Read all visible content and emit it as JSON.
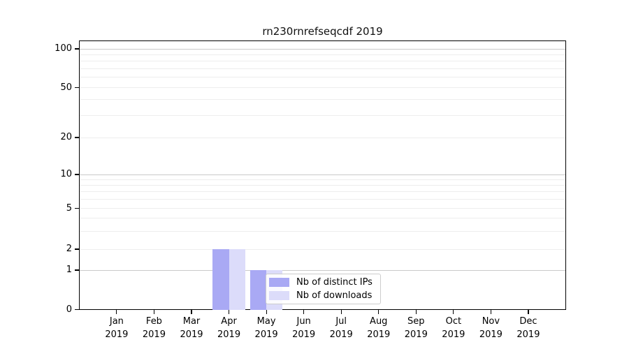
{
  "chart_data": {
    "type": "bar",
    "title": "rn230rnrefseqcdf 2019",
    "xlabel": "",
    "ylabel": "",
    "year_label": "2019",
    "categories": [
      "Jan",
      "Feb",
      "Mar",
      "Apr",
      "May",
      "Jun",
      "Jul",
      "Aug",
      "Sep",
      "Oct",
      "Nov",
      "Dec"
    ],
    "series": [
      {
        "name": "Nb of distinct IPs",
        "color": "#a9a9f4",
        "values": [
          0,
          0,
          0,
          2,
          1,
          0,
          0,
          0,
          0,
          0,
          0,
          0
        ]
      },
      {
        "name": "Nb of downloads",
        "color": "#dcdcfa",
        "values": [
          0,
          0,
          0,
          2,
          1,
          0,
          0,
          0,
          0,
          0,
          0,
          0
        ]
      }
    ],
    "y_scale": "symlog",
    "y_ticks": [
      0,
      1,
      2,
      5,
      10,
      20,
      50,
      100
    ],
    "y_major_gridlines": [
      1,
      10,
      100
    ],
    "y_minor_gridlines": [
      2,
      3,
      4,
      5,
      6,
      7,
      8,
      9,
      20,
      30,
      40,
      50,
      60,
      70,
      80,
      90
    ],
    "ylim": [
      0,
      100
    ],
    "grid": true,
    "legend_position": "lower center-right inside plot"
  },
  "colors": {
    "major_grid": "#c9c9c9",
    "minor_grid": "#ededed",
    "spine": "#000000",
    "legend_border": "#cccccc",
    "background": "#ffffff"
  }
}
